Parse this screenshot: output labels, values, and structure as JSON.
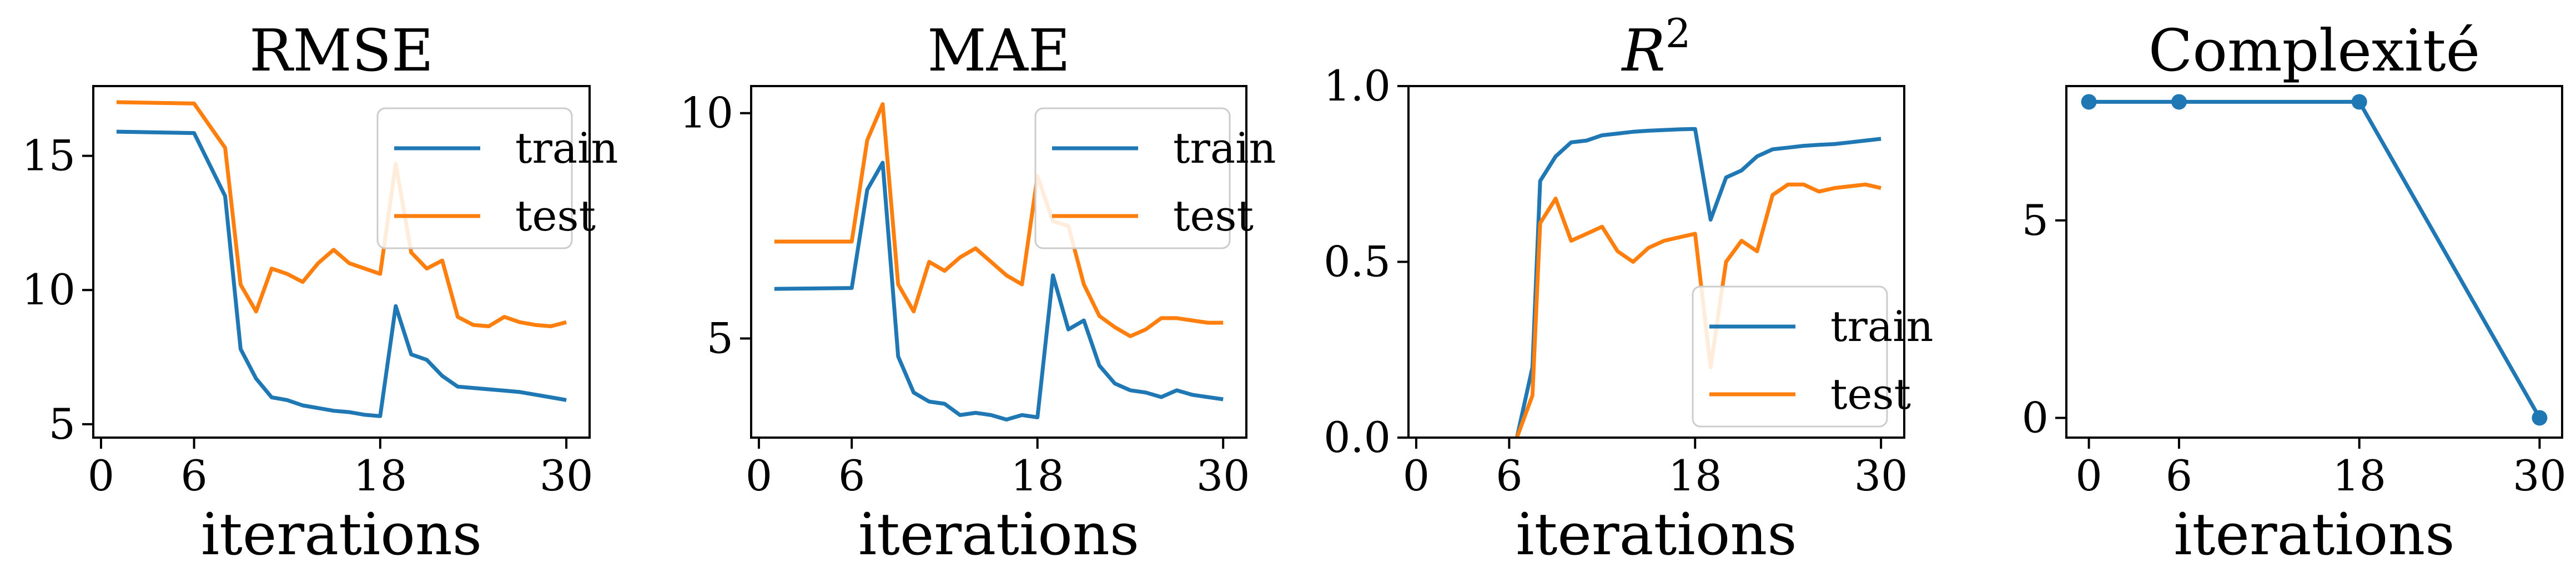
{
  "colors": {
    "train": "#1f77b4",
    "test": "#ff7f0e"
  },
  "chart_data": [
    {
      "type": "line",
      "title": "RMSE",
      "xlabel": "iterations",
      "ylabel": "",
      "xlim": [
        -0.5,
        31.5
      ],
      "ylim": [
        4.5,
        17.6
      ],
      "xticks": [
        0,
        6,
        18,
        30
      ],
      "yticks": [
        5,
        10,
        15
      ],
      "grid": false,
      "legend": "top-right",
      "series": [
        {
          "name": "train",
          "color": "#1f77b4",
          "x": [
            1,
            6,
            8,
            9,
            10,
            11,
            12,
            13,
            14,
            15,
            16,
            17,
            18,
            19,
            20,
            21,
            22,
            23,
            24,
            25,
            26,
            27,
            28,
            29,
            30
          ],
          "y": [
            15.9,
            15.85,
            13.5,
            7.8,
            6.7,
            6.0,
            5.9,
            5.7,
            5.6,
            5.5,
            5.45,
            5.35,
            5.3,
            9.4,
            7.6,
            7.4,
            6.8,
            6.4,
            6.35,
            6.3,
            6.25,
            6.2,
            6.1,
            6.0,
            5.9
          ]
        },
        {
          "name": "test",
          "color": "#ff7f0e",
          "x": [
            1,
            6,
            8,
            9,
            10,
            11,
            12,
            13,
            14,
            15,
            16,
            17,
            18,
            19,
            20,
            21,
            22,
            23,
            24,
            25,
            26,
            27,
            28,
            29,
            30
          ],
          "y": [
            17.0,
            16.95,
            15.3,
            10.2,
            9.2,
            10.8,
            10.6,
            10.3,
            11.0,
            11.5,
            11.0,
            10.8,
            10.6,
            14.7,
            11.4,
            10.8,
            11.1,
            9.0,
            8.7,
            8.65,
            9.0,
            8.8,
            8.7,
            8.65,
            8.8
          ]
        }
      ]
    },
    {
      "type": "line",
      "title": "MAE",
      "xlabel": "iterations",
      "ylabel": "",
      "xlim": [
        -0.5,
        31.5
      ],
      "ylim": [
        2.8,
        10.6
      ],
      "xticks": [
        0,
        6,
        18,
        30
      ],
      "yticks": [
        5,
        10
      ],
      "grid": false,
      "legend": "top-right",
      "series": [
        {
          "name": "train",
          "color": "#1f77b4",
          "x": [
            1,
            6,
            7,
            8,
            9,
            10,
            11,
            12,
            13,
            14,
            15,
            16,
            17,
            18,
            19,
            20,
            21,
            22,
            23,
            24,
            25,
            26,
            27,
            28,
            29,
            30
          ],
          "y": [
            6.1,
            6.12,
            8.3,
            8.9,
            4.6,
            3.8,
            3.6,
            3.55,
            3.3,
            3.35,
            3.3,
            3.2,
            3.3,
            3.25,
            6.4,
            5.2,
            5.4,
            4.4,
            4.0,
            3.85,
            3.8,
            3.7,
            3.85,
            3.75,
            3.7,
            3.65
          ]
        },
        {
          "name": "test",
          "color": "#ff7f0e",
          "x": [
            1,
            6,
            7,
            8,
            9,
            10,
            11,
            12,
            13,
            14,
            15,
            16,
            17,
            18,
            19,
            20,
            21,
            22,
            23,
            24,
            25,
            26,
            27,
            28,
            29,
            30
          ],
          "y": [
            7.15,
            7.15,
            9.4,
            10.2,
            6.2,
            5.6,
            6.7,
            6.5,
            6.8,
            7.0,
            6.7,
            6.4,
            6.2,
            8.6,
            7.6,
            7.5,
            6.2,
            5.5,
            5.25,
            5.05,
            5.2,
            5.45,
            5.45,
            5.4,
            5.35,
            5.35
          ]
        }
      ]
    },
    {
      "type": "line",
      "title": "R^2",
      "xlabel": "iterations",
      "ylabel": "",
      "xlim": [
        -0.5,
        31.5
      ],
      "ylim": [
        0,
        1
      ],
      "xticks": [
        0,
        6,
        18,
        30
      ],
      "yticks": [
        0.0,
        0.5,
        1.0
      ],
      "ytick_labels": [
        "0.0",
        "0.5",
        "1.0"
      ],
      "grid": false,
      "legend": "lower-right",
      "series": [
        {
          "name": "train",
          "color": "#1f77b4",
          "x": [
            6.5,
            7.5,
            8,
            9,
            10,
            11,
            12,
            13,
            14,
            15,
            16,
            17,
            18,
            19,
            20,
            21,
            22,
            23,
            24,
            25,
            26,
            27,
            28,
            29,
            30
          ],
          "y": [
            0.0,
            0.2,
            0.73,
            0.8,
            0.84,
            0.845,
            0.86,
            0.865,
            0.87,
            0.873,
            0.875,
            0.877,
            0.878,
            0.62,
            0.74,
            0.76,
            0.8,
            0.82,
            0.825,
            0.83,
            0.833,
            0.835,
            0.84,
            0.845,
            0.85
          ]
        },
        {
          "name": "test",
          "color": "#ff7f0e",
          "x": [
            6.5,
            7.5,
            8,
            9,
            10,
            11,
            12,
            13,
            14,
            15,
            16,
            17,
            18,
            19,
            20,
            21,
            22,
            23,
            24,
            25,
            26,
            27,
            28,
            29,
            30
          ],
          "y": [
            0.0,
            0.12,
            0.61,
            0.68,
            0.56,
            0.58,
            0.6,
            0.53,
            0.5,
            0.54,
            0.56,
            0.57,
            0.58,
            0.2,
            0.5,
            0.56,
            0.53,
            0.69,
            0.72,
            0.72,
            0.7,
            0.71,
            0.715,
            0.72,
            0.71
          ]
        }
      ]
    },
    {
      "type": "line",
      "title": "Complexité",
      "xlabel": "iterations",
      "ylabel": "",
      "xlim": [
        -1.5,
        31.5
      ],
      "ylim": [
        -0.5,
        8.4
      ],
      "xticks": [
        0,
        6,
        18,
        30
      ],
      "yticks": [
        0,
        5
      ],
      "grid": false,
      "legend": "",
      "markers": true,
      "series": [
        {
          "name": "",
          "color": "#1f77b4",
          "x": [
            0,
            6,
            18,
            30
          ],
          "y": [
            8,
            8,
            8,
            0
          ]
        }
      ]
    }
  ]
}
